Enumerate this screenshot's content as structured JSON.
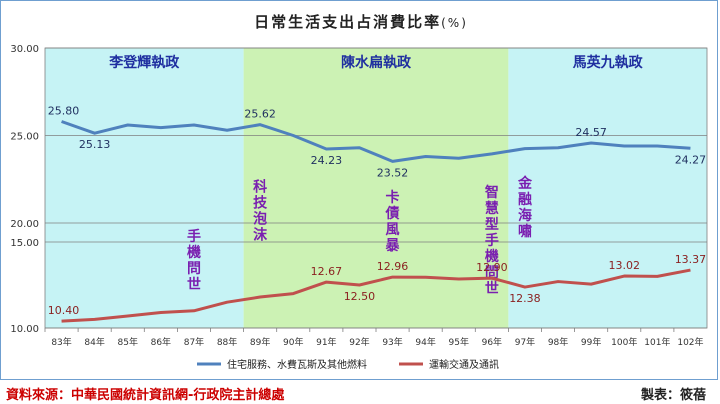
{
  "chart_data": {
    "type": "line",
    "title": "日常生活支出占消費比率",
    "title_unit": "(%)",
    "x": [
      "83年",
      "84年",
      "85年",
      "86年",
      "87年",
      "88年",
      "89年",
      "90年",
      "91年",
      "92年",
      "93年",
      "94年",
      "95年",
      "96年",
      "97年",
      "98年",
      "99年",
      "100年",
      "101年",
      "102年"
    ],
    "yticks": [
      "10.00",
      "15.00",
      "20.00",
      "25.00",
      "30.00"
    ],
    "ylim": [
      10,
      30
    ],
    "axis_break": [
      15,
      20
    ],
    "series": [
      {
        "name": "住宅服務、水費瓦斯及其他燃料",
        "color": "#4f81bd",
        "values": [
          25.8,
          25.13,
          25.6,
          25.45,
          25.6,
          25.3,
          25.62,
          25.0,
          24.23,
          24.3,
          23.52,
          23.8,
          23.7,
          23.95,
          24.25,
          24.3,
          24.57,
          24.4,
          24.4,
          24.27
        ],
        "labels": {
          "0": "25.80",
          "1": "25.13",
          "6": "25.62",
          "8": "24.23",
          "10": "23.52",
          "16": "24.57",
          "19": "24.27"
        }
      },
      {
        "name": "運輸交通及通訊",
        "color": "#c0504d",
        "values": [
          10.4,
          10.5,
          10.7,
          10.9,
          11.0,
          11.5,
          11.8,
          12.0,
          12.67,
          12.5,
          12.96,
          12.95,
          12.85,
          12.9,
          12.38,
          12.7,
          12.55,
          13.02,
          13.0,
          13.37
        ],
        "labels": {
          "0": "10.40",
          "8": "12.67",
          "9": "12.50",
          "10": "12.96",
          "13": "12.90",
          "14": "12.38",
          "17": "13.02",
          "19": "13.37"
        }
      }
    ],
    "eras": [
      {
        "label": "李登輝執政",
        "from": 0,
        "to": 6,
        "color": "#c6f3f5"
      },
      {
        "label": "陳水扁執政",
        "from": 6,
        "to": 14,
        "color": "#ccf2b4"
      },
      {
        "label": "馬英九執政",
        "from": 14,
        "to": 19,
        "color": "#c6f3f5"
      }
    ],
    "annotations": [
      {
        "text": "手機問世",
        "at": 4,
        "top": 15.2,
        "color": "#7a1fb0"
      },
      {
        "text": "科技泡沫",
        "at": 6,
        "top": 21.8,
        "color": "#7a1fb0"
      },
      {
        "text": "卡債風暴",
        "at": 10,
        "top": 21.2,
        "color": "#7a1fb0"
      },
      {
        "text": "智慧型手機問世",
        "at": 13,
        "top": 21.5,
        "color": "#7a1fb0"
      },
      {
        "text": "金融海嘯",
        "at": 14,
        "top": 22.0,
        "color": "#7a1fb0"
      }
    ]
  },
  "footer": {
    "source": "資料來源：中華民國統計資訊網-行政院主計總處",
    "maker": "製表：筱蓓"
  }
}
